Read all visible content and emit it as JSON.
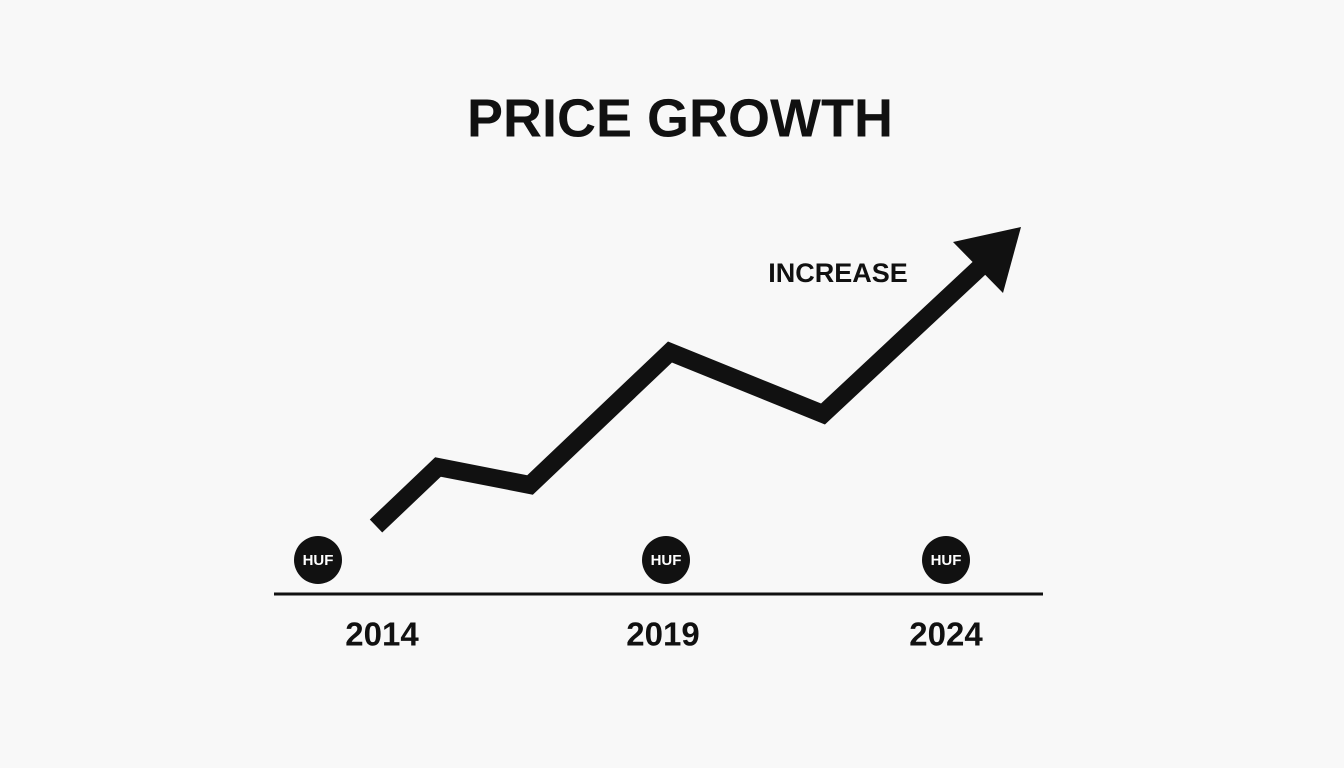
{
  "title": "PRICE GROWTH",
  "annotation": "INCREASE",
  "markers": [
    {
      "label": "HUF",
      "year": "2014"
    },
    {
      "label": "HUF",
      "year": "2019"
    },
    {
      "label": "HUF",
      "year": "2024"
    }
  ]
}
